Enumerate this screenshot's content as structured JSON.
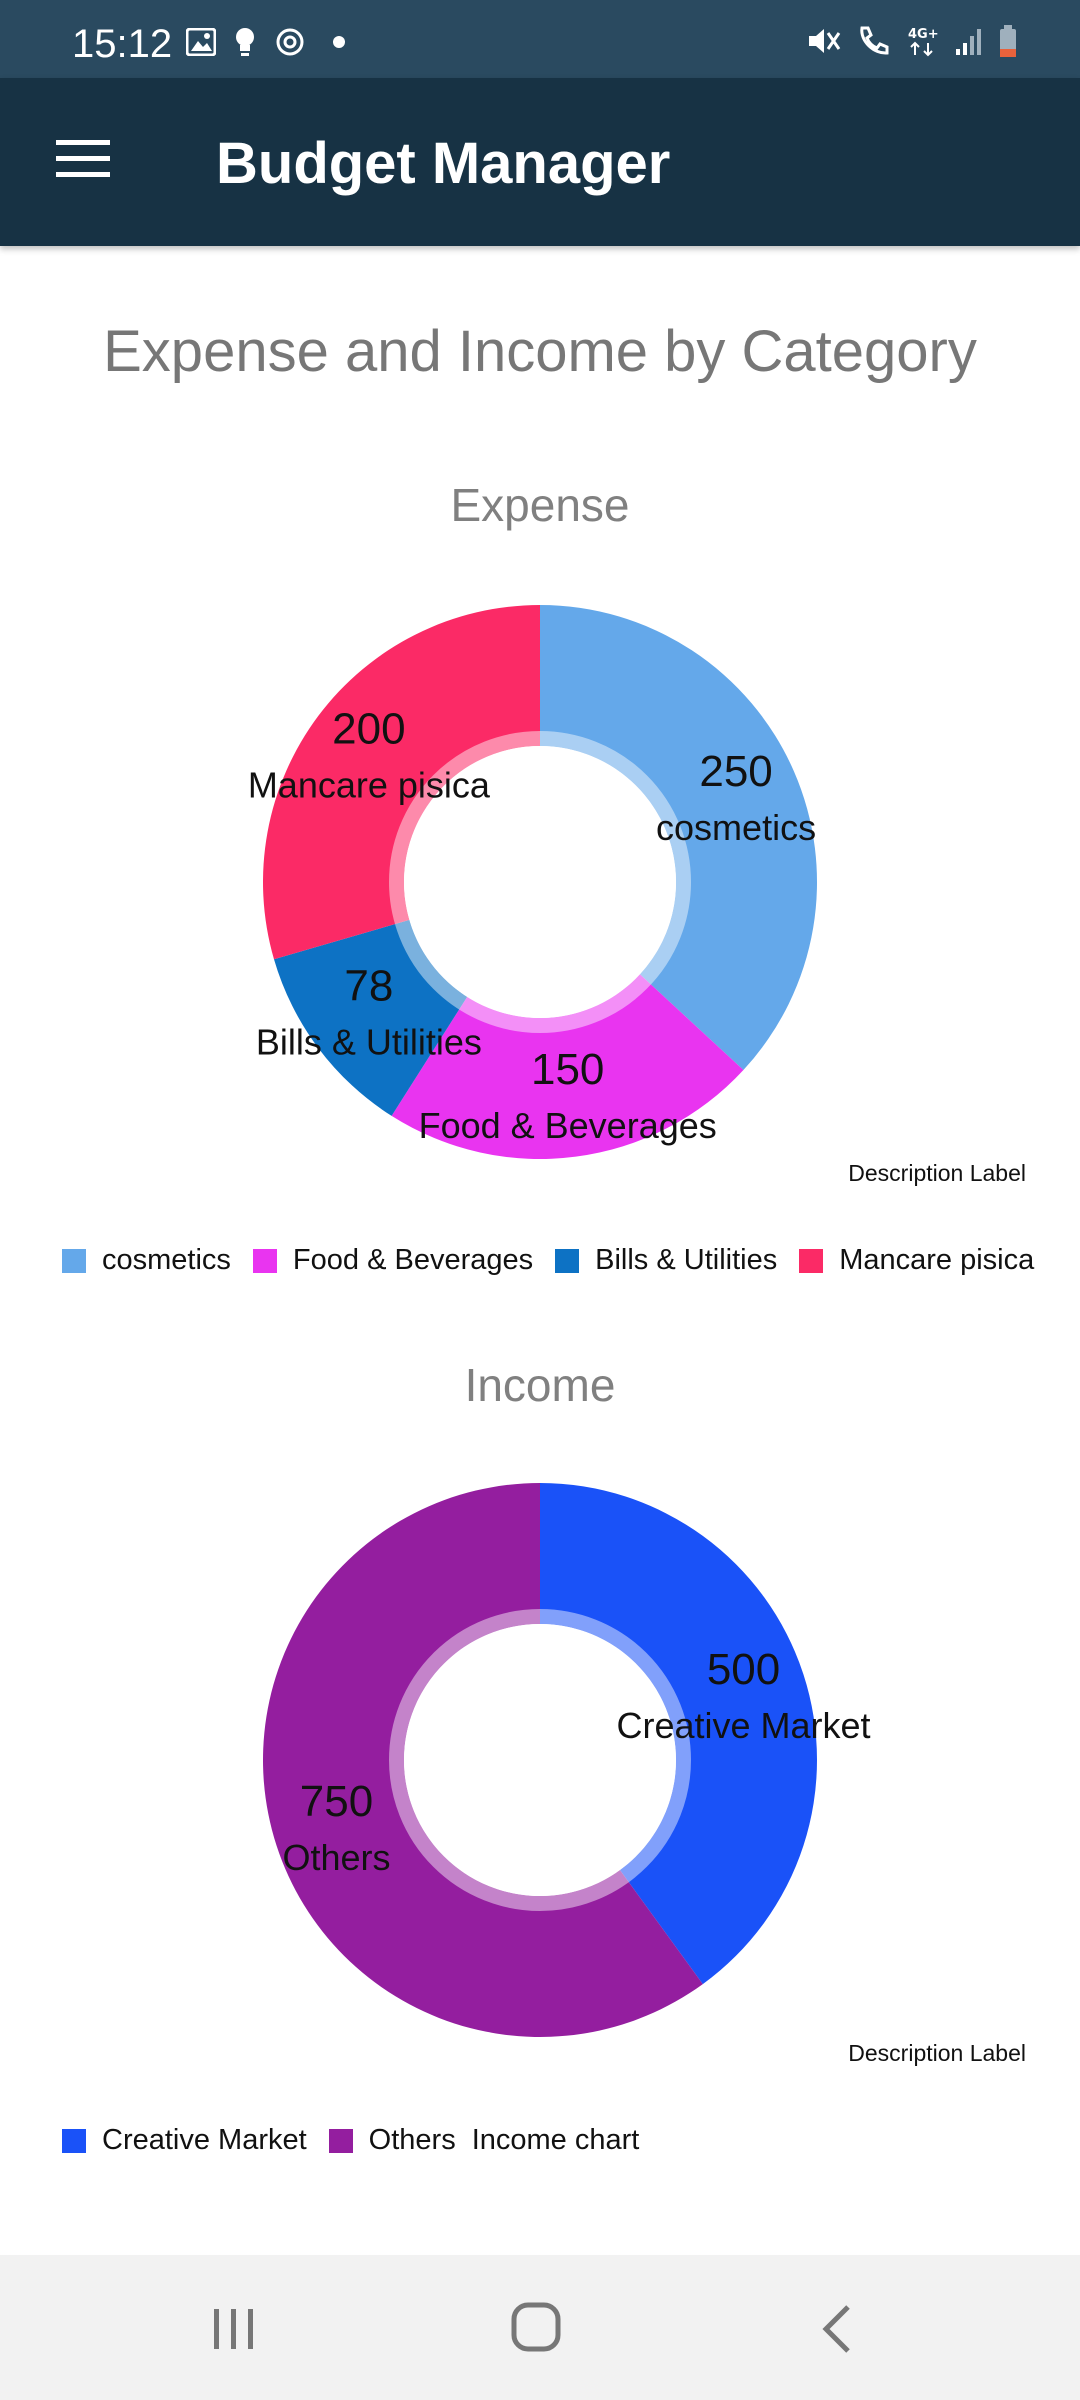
{
  "status_bar": {
    "time": "15:12",
    "left_icons": [
      "image-icon",
      "bulb-icon",
      "sync-icon",
      "dot-icon"
    ],
    "right_icons": [
      "mute-icon",
      "wifi-call-icon",
      "network-4g-icon",
      "signal-icon",
      "battery-icon"
    ]
  },
  "app_bar": {
    "title": "Budget Manager",
    "menu_icon": "hamburger-menu-icon"
  },
  "page": {
    "title": "Expense and Income by Category"
  },
  "chart_data": [
    {
      "type": "pie",
      "title": "Expense",
      "description_label": "Description Label",
      "slices": [
        {
          "label": "cosmetics",
          "value": 250,
          "color": "#64a8ea"
        },
        {
          "label": "Food & Beverages",
          "value": 150,
          "color": "#e934f0"
        },
        {
          "label": "Bills & Utilities",
          "value": 78,
          "color": "#0d72c4"
        },
        {
          "label": "Mancare pisica",
          "value": 200,
          "color": "#fb2a66"
        }
      ],
      "legend": [
        "cosmetics",
        "Food & Beverages",
        "Bills & Utilities",
        "Mancare pisica"
      ],
      "legend_extra": ""
    },
    {
      "type": "pie",
      "title": "Income",
      "description_label": "Description Label",
      "slices": [
        {
          "label": "Creative Market",
          "value": 500,
          "color": "#1a52f8"
        },
        {
          "label": "Others",
          "value": 750,
          "color": "#941e9f"
        }
      ],
      "legend": [
        "Creative Market",
        "Others"
      ],
      "legend_extra": "Income chart"
    }
  ],
  "nav_bar": {
    "recents_icon": "recents-icon",
    "home_icon": "home-icon",
    "back_icon": "back-icon"
  }
}
